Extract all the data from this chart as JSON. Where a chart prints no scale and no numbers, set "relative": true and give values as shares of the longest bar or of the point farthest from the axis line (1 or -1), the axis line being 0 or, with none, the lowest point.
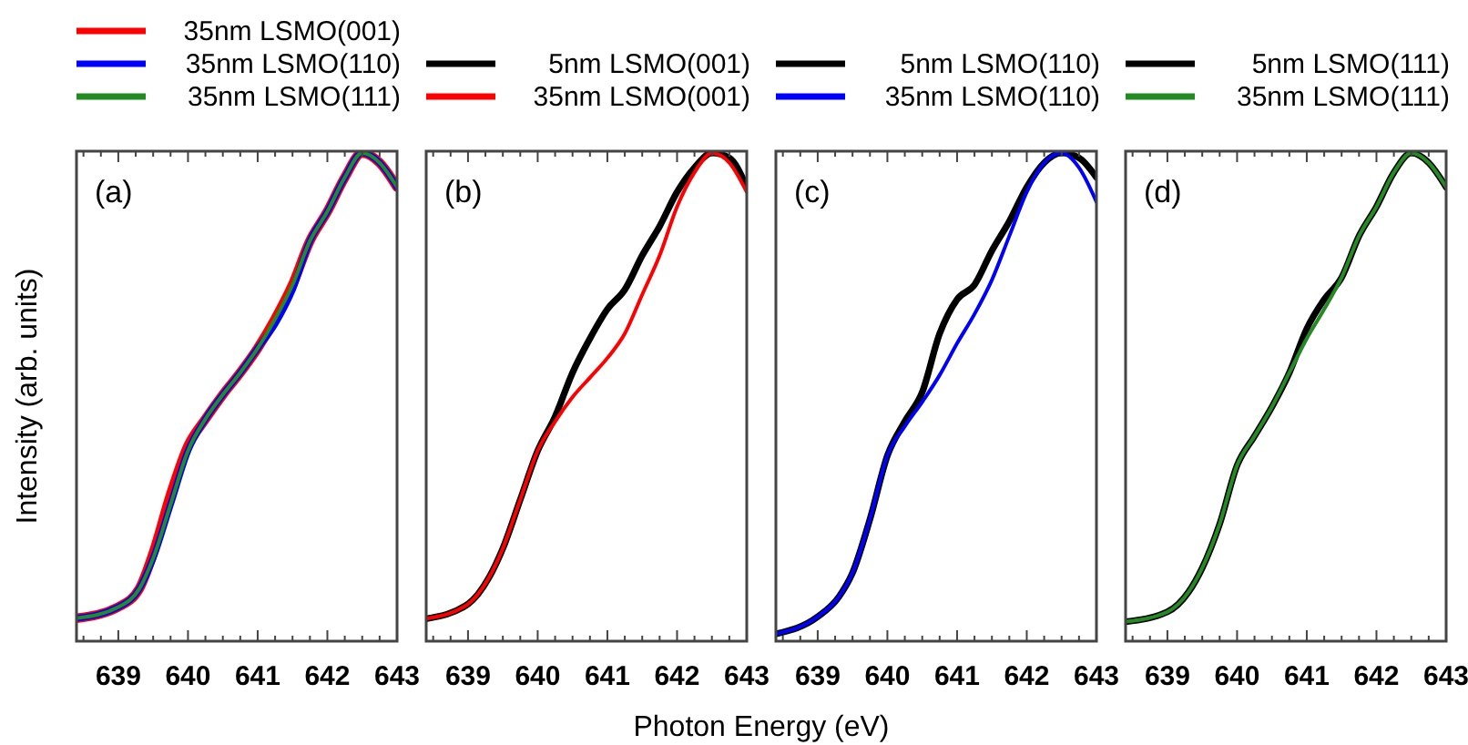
{
  "chart_data": [
    {
      "type": "line",
      "xlabel": null,
      "ylabel": "Intensity (arb. units)",
      "annotations": [
        "(a)"
      ],
      "relative": true,
      "legend": "top",
      "xlim": [
        638.4,
        643
      ],
      "xticks": [
        639,
        640,
        641,
        642,
        643
      ],
      "x": [
        638.4,
        639,
        639.3,
        639.5,
        639.75,
        640,
        640.25,
        640.5,
        640.75,
        641,
        641.25,
        641.5,
        641.75,
        642,
        642.25,
        642.5,
        642.75,
        643
      ],
      "series": [
        {
          "name": "35nm LSMO(001)",
          "color": "#ff0000",
          "values": [
            0.047,
            0.07,
            0.107,
            0.18,
            0.3,
            0.4,
            0.455,
            0.505,
            0.55,
            0.6,
            0.66,
            0.73,
            0.82,
            0.88,
            0.95,
            1,
            0.98,
            0.93
          ]
        },
        {
          "name": "35nm LSMO(110)",
          "color": "#0000ff",
          "values": [
            0.047,
            0.07,
            0.107,
            0.17,
            0.28,
            0.39,
            0.455,
            0.505,
            0.55,
            0.6,
            0.65,
            0.72,
            0.82,
            0.88,
            0.95,
            1,
            0.98,
            0.93
          ]
        },
        {
          "name": "35nm LSMO(111)",
          "color": "#228b22",
          "values": [
            0.047,
            0.07,
            0.107,
            0.17,
            0.28,
            0.39,
            0.455,
            0.505,
            0.55,
            0.6,
            0.66,
            0.73,
            0.82,
            0.88,
            0.95,
            1,
            0.98,
            0.93
          ]
        }
      ]
    },
    {
      "type": "line",
      "xlabel": "Photon Energy (eV)",
      "annotations": [
        "(b)"
      ],
      "relative": true,
      "legend": "top",
      "xlim": [
        638.4,
        643
      ],
      "xticks": [
        639,
        640,
        641,
        642,
        643
      ],
      "x": [
        638.4,
        639,
        639.3,
        639.5,
        639.75,
        640,
        640.25,
        640.5,
        640.75,
        641,
        641.25,
        641.5,
        641.75,
        642,
        642.25,
        642.5,
        642.75,
        643
      ],
      "series": [
        {
          "name": "5nm LSMO(001)",
          "color": "#000000",
          "values": [
            0.046,
            0.076,
            0.13,
            0.19,
            0.29,
            0.39,
            0.46,
            0.55,
            0.62,
            0.68,
            0.72,
            0.79,
            0.85,
            0.92,
            0.97,
            1,
            0.99,
            0.93
          ]
        },
        {
          "name": "35nm LSMO(001)",
          "color": "#ff0000",
          "values": [
            0.046,
            0.076,
            0.13,
            0.19,
            0.29,
            0.39,
            0.45,
            0.5,
            0.54,
            0.58,
            0.63,
            0.71,
            0.79,
            0.89,
            0.96,
            1,
            0.98,
            0.92
          ]
        }
      ]
    },
    {
      "type": "line",
      "annotations": [
        "(c)"
      ],
      "relative": true,
      "legend": "top",
      "xlim": [
        638.4,
        643
      ],
      "xticks": [
        639,
        640,
        641,
        642,
        643
      ],
      "x": [
        638.4,
        639,
        639.3,
        639.5,
        639.75,
        640,
        640.25,
        640.5,
        640.75,
        641,
        641.25,
        641.5,
        641.75,
        642,
        642.25,
        642.5,
        642.75,
        643
      ],
      "series": [
        {
          "name": "5nm LSMO(110)",
          "color": "#000000",
          "values": [
            0.015,
            0.05,
            0.09,
            0.14,
            0.25,
            0.38,
            0.45,
            0.51,
            0.63,
            0.7,
            0.73,
            0.8,
            0.86,
            0.93,
            0.98,
            1,
            0.99,
            0.95
          ]
        },
        {
          "name": "35nm LSMO(110)",
          "color": "#0000ff",
          "values": [
            0.015,
            0.05,
            0.09,
            0.14,
            0.25,
            0.38,
            0.44,
            0.49,
            0.545,
            0.61,
            0.67,
            0.74,
            0.83,
            0.92,
            0.98,
            1,
            0.97,
            0.9
          ]
        }
      ]
    },
    {
      "type": "line",
      "annotations": [
        "(d)"
      ],
      "relative": true,
      "legend": "top",
      "xlim": [
        638.4,
        643
      ],
      "xticks": [
        639,
        640,
        641,
        642,
        643
      ],
      "x": [
        638.4,
        639,
        639.3,
        639.5,
        639.75,
        640,
        640.25,
        640.5,
        640.75,
        641,
        641.25,
        641.5,
        641.75,
        642,
        642.25,
        642.5,
        642.75,
        643
      ],
      "series": [
        {
          "name": "5nm LSMO(111)",
          "color": "#000000",
          "values": [
            0.04,
            0.06,
            0.1,
            0.15,
            0.24,
            0.36,
            0.42,
            0.48,
            0.55,
            0.64,
            0.7,
            0.745,
            0.83,
            0.89,
            0.96,
            1,
            0.98,
            0.93
          ]
        },
        {
          "name": "35nm LSMO(111)",
          "color": "#228b22",
          "values": [
            0.04,
            0.06,
            0.1,
            0.15,
            0.24,
            0.36,
            0.42,
            0.48,
            0.55,
            0.62,
            0.68,
            0.745,
            0.83,
            0.89,
            0.96,
            1,
            0.98,
            0.93
          ]
        }
      ]
    }
  ]
}
